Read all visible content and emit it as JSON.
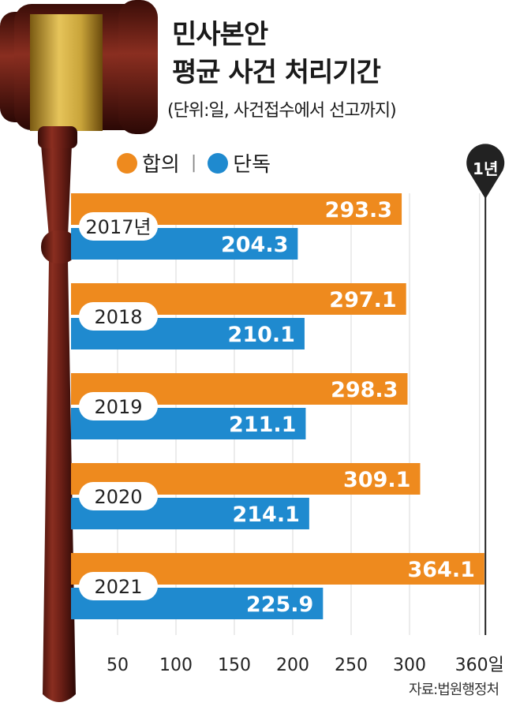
{
  "title_line1": "민사본안",
  "title_line2": "평균 사건 처리기간",
  "subtitle": "(단위:일, 사건접수에서 선고까지)",
  "legend": {
    "series1": "합의",
    "separator": "|",
    "series2": "단독"
  },
  "marker_label": "1년",
  "source": "자료:법원행정처",
  "colors": {
    "orange": "#EE8A1E",
    "blue": "#1F8ACF",
    "wood": "#6B1F16",
    "brass": "#C9A43A"
  },
  "chart_data": {
    "type": "bar",
    "orientation": "horizontal",
    "categories": [
      "2017년",
      "2018",
      "2019",
      "2020",
      "2021"
    ],
    "series": [
      {
        "name": "합의",
        "color": "#EE8A1E",
        "values": [
          293.3,
          297.1,
          298.3,
          309.1,
          364.1
        ]
      },
      {
        "name": "단독",
        "color": "#1F8ACF",
        "values": [
          204.3,
          210.1,
          211.1,
          214.1,
          225.9
        ]
      }
    ],
    "x_ticks": [
      {
        "value": 50,
        "label": "50"
      },
      {
        "value": 100,
        "label": "100"
      },
      {
        "value": 150,
        "label": "150"
      },
      {
        "value": 200,
        "label": "200"
      },
      {
        "value": 250,
        "label": "250"
      },
      {
        "value": 300,
        "label": "300"
      },
      {
        "value": 360,
        "label": "360일"
      }
    ],
    "reference_line": {
      "value": 365,
      "label": "1년"
    },
    "grid": true
  }
}
